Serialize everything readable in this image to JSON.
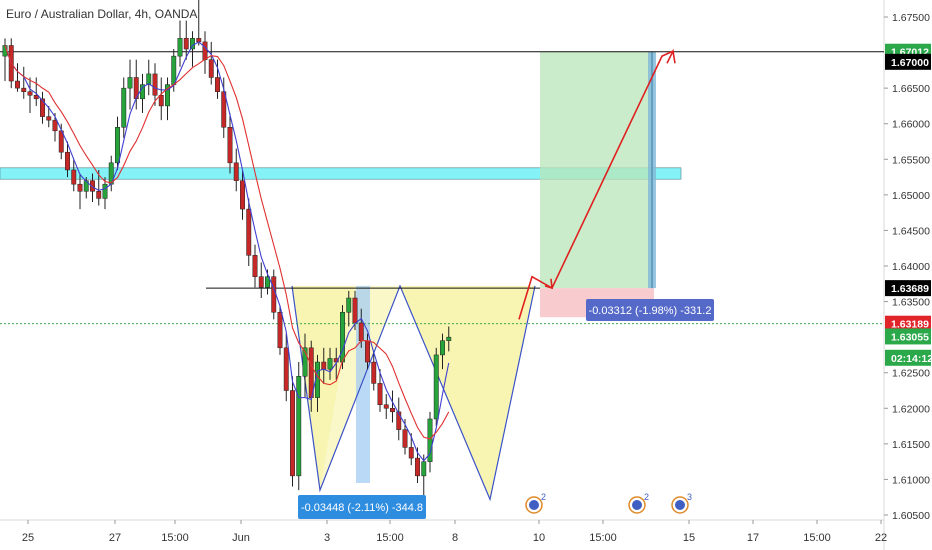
{
  "chart_data": {
    "type": "candlestick",
    "title": "Euro / Australian Dollar, 4h, OANDA",
    "ylim": [
      1.603,
      1.678
    ],
    "y_ticks": [
      "1.67500",
      "1.66500",
      "1.66000",
      "1.65500",
      "1.65000",
      "1.64500",
      "1.64000",
      "1.63500",
      "1.62500",
      "1.62000",
      "1.61500",
      "1.61000",
      "1.60500"
    ],
    "x_ticks": [
      "25",
      "27",
      "15:00",
      "Jun",
      "3",
      "15:00",
      "8",
      "10",
      "15:00",
      "15",
      "17",
      "15:00",
      "22"
    ],
    "price_labels": {
      "target": "1.67012",
      "level": "1.67000",
      "neckline": "1.63689",
      "current": "1.63189",
      "bid": "1.63055",
      "countdown": "02:14:12"
    },
    "price_levels": {
      "target": 1.67012,
      "level": 1.67,
      "neckline": 1.63689,
      "current": 1.63189
    },
    "measure_labels": {
      "left": "-0.03448 (-2.11%) -344.8",
      "right": "-0.03312 (-1.98%) -331.2"
    },
    "event_counts": [
      "2",
      "2",
      "3"
    ],
    "candles": [
      [
        1.6695,
        1.672,
        1.666,
        1.671
      ],
      [
        1.671,
        1.672,
        1.665,
        1.666
      ],
      [
        1.666,
        1.6685,
        1.6645,
        1.665
      ],
      [
        1.665,
        1.668,
        1.6635,
        1.6645
      ],
      [
        1.6645,
        1.6665,
        1.6615,
        1.664
      ],
      [
        1.664,
        1.6665,
        1.6625,
        1.6635
      ],
      [
        1.6635,
        1.6645,
        1.66,
        1.661
      ],
      [
        1.661,
        1.6625,
        1.6595,
        1.6605
      ],
      [
        1.6605,
        1.6615,
        1.6575,
        1.659
      ],
      [
        1.659,
        1.66,
        1.655,
        1.656
      ],
      [
        1.656,
        1.6575,
        1.6525,
        1.6535
      ],
      [
        1.6535,
        1.655,
        1.6505,
        1.6515
      ],
      [
        1.6515,
        1.653,
        1.648,
        1.6505
      ],
      [
        1.6505,
        1.6525,
        1.6495,
        1.652
      ],
      [
        1.652,
        1.653,
        1.649,
        1.6505
      ],
      [
        1.6505,
        1.6535,
        1.6485,
        1.6495
      ],
      [
        1.6495,
        1.6525,
        1.648,
        1.6515
      ],
      [
        1.6515,
        1.6555,
        1.6505,
        1.6545
      ],
      [
        1.6545,
        1.661,
        1.6535,
        1.6595
      ],
      [
        1.6595,
        1.6665,
        1.658,
        1.665
      ],
      [
        1.665,
        1.669,
        1.662,
        1.6665
      ],
      [
        1.6665,
        1.669,
        1.662,
        1.6635
      ],
      [
        1.6635,
        1.667,
        1.6615,
        1.6655
      ],
      [
        1.6655,
        1.669,
        1.664,
        1.667
      ],
      [
        1.667,
        1.6685,
        1.6625,
        1.664
      ],
      [
        1.664,
        1.6665,
        1.6605,
        1.6625
      ],
      [
        1.6625,
        1.6665,
        1.6605,
        1.6655
      ],
      [
        1.6655,
        1.6705,
        1.6645,
        1.6695
      ],
      [
        1.6695,
        1.6745,
        1.668,
        1.672
      ],
      [
        1.672,
        1.6745,
        1.669,
        1.6705
      ],
      [
        1.6705,
        1.673,
        1.668,
        1.672
      ],
      [
        1.672,
        1.678,
        1.671,
        1.6715
      ],
      [
        1.6715,
        1.673,
        1.667,
        1.669
      ],
      [
        1.669,
        1.6715,
        1.6655,
        1.6665
      ],
      [
        1.6665,
        1.669,
        1.6635,
        1.6645
      ],
      [
        1.6645,
        1.6665,
        1.658,
        1.6595
      ],
      [
        1.6595,
        1.6615,
        1.653,
        1.6545
      ],
      [
        1.6545,
        1.6565,
        1.6505,
        1.652
      ],
      [
        1.652,
        1.6535,
        1.6465,
        1.648
      ],
      [
        1.648,
        1.6495,
        1.64,
        1.6415
      ],
      [
        1.6415,
        1.643,
        1.637,
        1.6385
      ],
      [
        1.6385,
        1.6405,
        1.6355,
        1.637
      ],
      [
        1.637,
        1.6395,
        1.636,
        1.6385
      ],
      [
        1.6385,
        1.6395,
        1.6325,
        1.6335
      ],
      [
        1.6335,
        1.6345,
        1.6275,
        1.6285
      ],
      [
        1.6285,
        1.6305,
        1.621,
        1.6225
      ],
      [
        1.6225,
        1.6245,
        1.609,
        1.6105
      ],
      [
        1.6105,
        1.6265,
        1.6085,
        1.6245
      ],
      [
        1.6245,
        1.6305,
        1.6215,
        1.6285
      ],
      [
        1.6285,
        1.6295,
        1.6195,
        1.6215
      ],
      [
        1.6215,
        1.6275,
        1.6195,
        1.6265
      ],
      [
        1.6265,
        1.6285,
        1.6235,
        1.6255
      ],
      [
        1.6255,
        1.6285,
        1.624,
        1.627
      ],
      [
        1.627,
        1.6285,
        1.624,
        1.6265
      ],
      [
        1.6265,
        1.6345,
        1.6255,
        1.6335
      ],
      [
        1.6335,
        1.6365,
        1.6315,
        1.6355
      ],
      [
        1.6355,
        1.6365,
        1.631,
        1.632
      ],
      [
        1.632,
        1.634,
        1.6285,
        1.6295
      ],
      [
        1.6295,
        1.6305,
        1.6255,
        1.6265
      ],
      [
        1.6265,
        1.628,
        1.6225,
        1.6235
      ],
      [
        1.6235,
        1.6255,
        1.6195,
        1.6205
      ],
      [
        1.6205,
        1.622,
        1.6185,
        1.62
      ],
      [
        1.62,
        1.6225,
        1.618,
        1.6195
      ],
      [
        1.6195,
        1.6215,
        1.6155,
        1.617
      ],
      [
        1.617,
        1.6185,
        1.6135,
        1.6145
      ],
      [
        1.6145,
        1.6165,
        1.612,
        1.613
      ],
      [
        1.613,
        1.6145,
        1.6095,
        1.6105
      ],
      [
        1.6105,
        1.6135,
        1.6075,
        1.6125
      ],
      [
        1.6125,
        1.6195,
        1.611,
        1.6185
      ],
      [
        1.6185,
        1.6285,
        1.6175,
        1.6275
      ],
      [
        1.6275,
        1.6305,
        1.6255,
        1.6295
      ],
      [
        1.6295,
        1.6315,
        1.628,
        1.63
      ]
    ]
  }
}
